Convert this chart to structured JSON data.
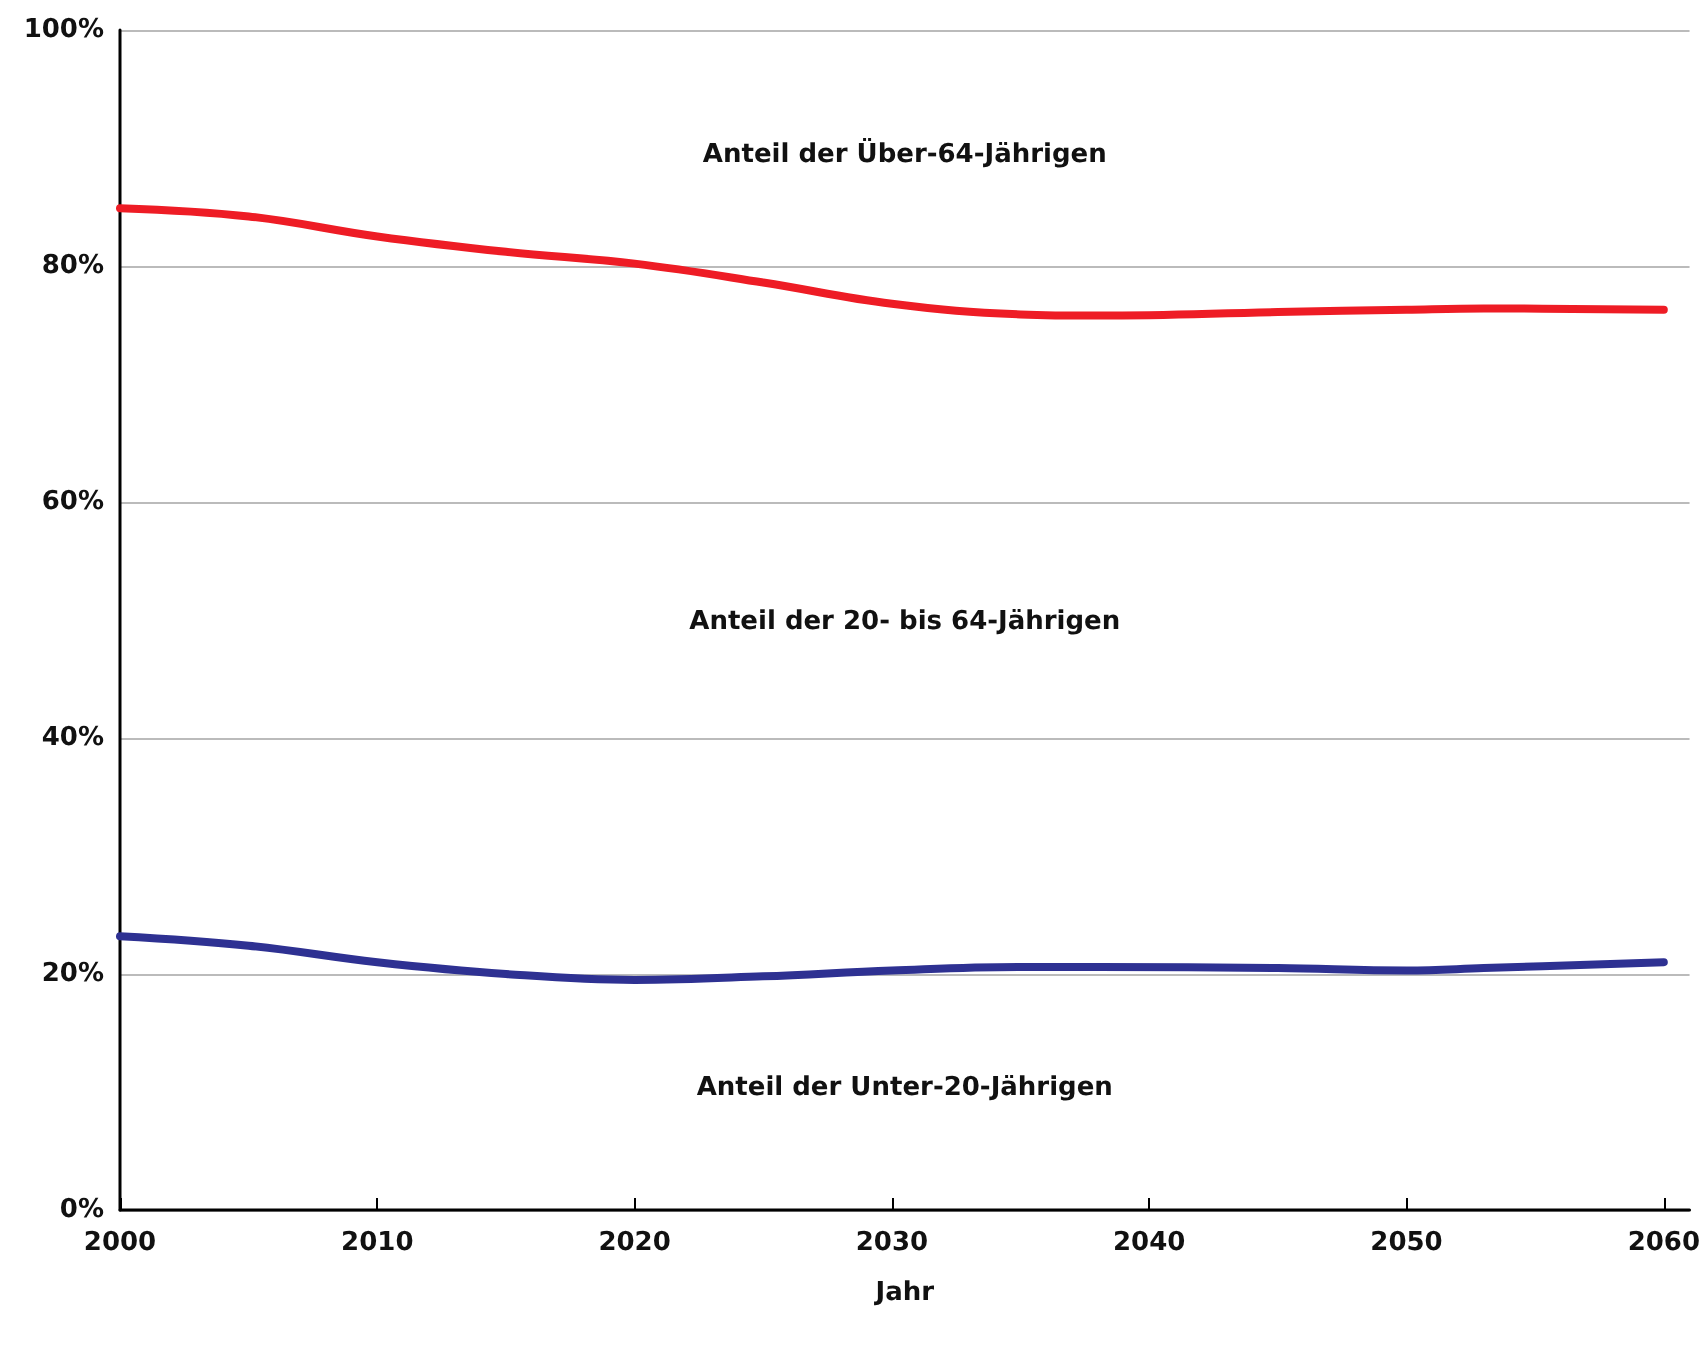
{
  "chart_data": {
    "type": "line",
    "xlabel": "Jahr",
    "x": [
      2000,
      2005,
      2010,
      2015,
      2020,
      2025,
      2030,
      2035,
      2038,
      2045,
      2050,
      2053,
      2060
    ],
    "series": [
      {
        "color": "#ee1c25",
        "values": [
          84.9,
          84.2,
          82.5,
          81.2,
          80.2,
          78.6,
          76.8,
          75.9,
          75.8,
          76.1,
          76.3,
          76.4,
          76.3
        ]
      },
      {
        "color": "#2e3192",
        "values": [
          23.2,
          22.4,
          21.0,
          20.0,
          19.5,
          19.8,
          20.3,
          20.6,
          20.6,
          20.5,
          20.3,
          20.5,
          21.0
        ]
      }
    ],
    "xlim": [
      2000,
      2061
    ],
    "xticks": [
      2000,
      2010,
      2020,
      2030,
      2040,
      2050,
      2060
    ],
    "ylim": [
      0,
      100
    ],
    "yticks": [
      {
        "value": 0,
        "label": "0%"
      },
      {
        "value": 20,
        "label": "20%"
      },
      {
        "value": 40,
        "label": "40%"
      },
      {
        "value": 60,
        "label": "60%"
      },
      {
        "value": 80,
        "label": "80%"
      },
      {
        "value": 100,
        "label": "100%"
      }
    ],
    "grid": "y",
    "marker": "none",
    "line_style": "solid",
    "annotations": [
      "Anteil der Über-64-Jährigen",
      "Anteil der 20- bis 64-Jährigen",
      "Anteil der Unter-20-Jährigen"
    ]
  }
}
